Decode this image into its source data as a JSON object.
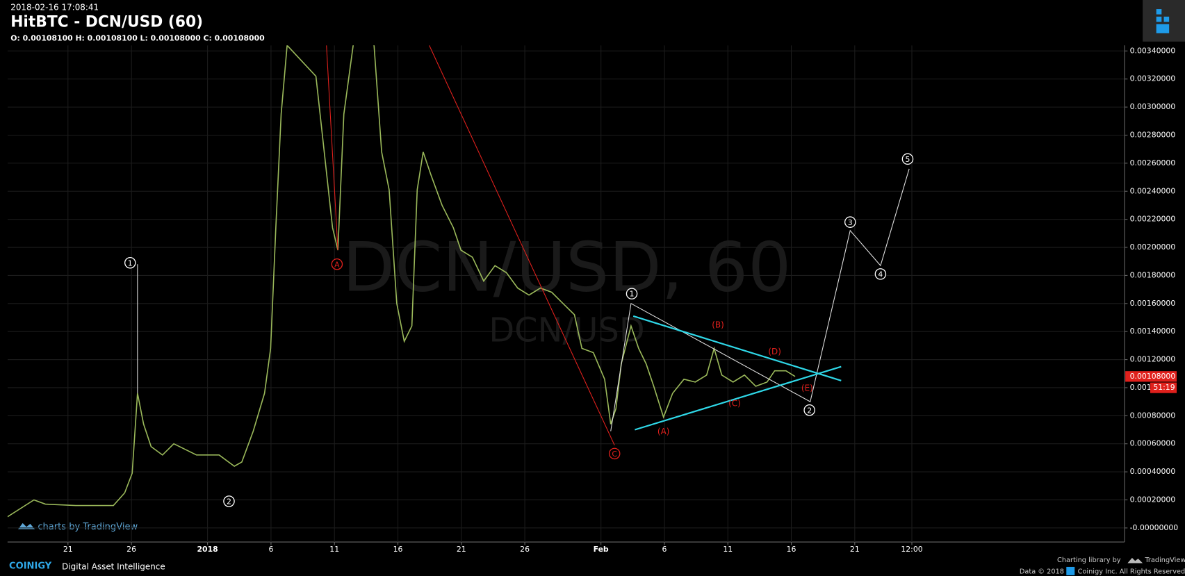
{
  "chart_data": {
    "type": "line",
    "timestamp": "2018-02-16 17:08:41",
    "title": "HitBTC - DCN/USD (60)",
    "ohlc": "O: 0.00108100 H: 0.00108100 L: 0.00108000 C: 0.00108000",
    "watermark": "DCN/USD, 60",
    "watermark_small": "DCN/USD",
    "series": [
      {
        "name": "DCN/USD",
        "color": "#9ab85a",
        "x": [
          -0.76,
          1.32,
          2.22,
          4.6,
          7.58,
          8.47,
          9.06,
          9.48,
          9.96,
          10.55,
          11.45,
          12.34,
          14.13,
          15.91,
          17.11,
          17.7,
          18.6,
          19.49,
          19.97,
          20.38,
          20.8,
          21.27,
          23.54,
          24.85,
          25.27,
          25.74,
          26.64,
          28.12,
          28.72,
          29.31,
          29.91,
          30.5,
          31.1,
          31.52,
          31.99,
          32.59,
          33.48,
          34.37,
          34.97,
          35.87,
          36.76,
          37.65,
          38.55,
          39.44,
          40.33,
          41.23,
          42.12,
          43.01,
          43.91,
          44.5,
          45.4,
          46.29,
          46.77,
          47.18,
          47.6,
          48.37,
          48.97,
          49.56,
          50.16,
          50.93,
          51.65,
          52.54,
          53.43,
          54.33,
          54.92,
          55.52,
          56.41,
          57.31,
          58.2,
          59.09,
          59.69,
          60.58,
          61.3
        ],
        "values": [
          8e-05,
          0.0002,
          0.00017,
          0.00016,
          0.00016,
          0.00025,
          0.00039,
          0.00096,
          0.00074,
          0.00058,
          0.00052,
          0.0006,
          0.00052,
          0.00052,
          0.00044,
          0.00047,
          0.00069,
          0.00096,
          0.00128,
          0.00214,
          0.00295,
          0.00344,
          0.00322,
          0.00214,
          0.00198,
          0.00295,
          0.00355,
          0.00344,
          0.00268,
          0.00241,
          0.0016,
          0.00133,
          0.00144,
          0.00241,
          0.00268,
          0.00252,
          0.0023,
          0.00214,
          0.00198,
          0.00193,
          0.00176,
          0.00187,
          0.00182,
          0.00171,
          0.00166,
          0.00171,
          0.00168,
          0.0016,
          0.00152,
          0.00128,
          0.00125,
          0.00106,
          0.00074,
          0.00085,
          0.00117,
          0.00144,
          0.00128,
          0.00117,
          0.00101,
          0.00079,
          0.00096,
          0.00106,
          0.00104,
          0.00109,
          0.00128,
          0.00109,
          0.00104,
          0.00109,
          0.00101,
          0.00104,
          0.00112,
          0.00112,
          0.00108
        ]
      }
    ],
    "xlim": [
      -0.76,
      87.2
    ],
    "xticks": [
      {
        "value": 4,
        "label": "21"
      },
      {
        "value": 9,
        "label": "26"
      },
      {
        "value": 15,
        "label": "2018"
      },
      {
        "value": 20,
        "label": "6"
      },
      {
        "value": 25,
        "label": "11"
      },
      {
        "value": 30,
        "label": "16"
      },
      {
        "value": 35,
        "label": "21"
      },
      {
        "value": 40,
        "label": "26"
      },
      {
        "value": 46,
        "label": "Feb"
      },
      {
        "value": 51,
        "label": "6"
      },
      {
        "value": 56,
        "label": "11"
      },
      {
        "value": 61,
        "label": "16"
      },
      {
        "value": 66,
        "label": "21"
      },
      {
        "value": 70.5,
        "label": "12:00"
      }
    ],
    "ylim": [
      -0.0001,
      0.00344
    ],
    "yticks": [
      {
        "value": 0,
        "label": "-0.00000000"
      },
      {
        "value": 0.0002,
        "label": "0.00020000"
      },
      {
        "value": 0.0004,
        "label": "0.00040000"
      },
      {
        "value": 0.0006,
        "label": "0.00060000"
      },
      {
        "value": 0.0008,
        "label": "0.00080000"
      },
      {
        "value": 0.001,
        "label": "0.001"
      },
      {
        "value": 0.0012,
        "label": "0.00120000"
      },
      {
        "value": 0.0014,
        "label": "0.00140000"
      },
      {
        "value": 0.0016,
        "label": "0.00160000"
      },
      {
        "value": 0.0018,
        "label": "0.00180000"
      },
      {
        "value": 0.002,
        "label": "0.00200000"
      },
      {
        "value": 0.0022,
        "label": "0.00220000"
      },
      {
        "value": 0.0024,
        "label": "0.00240000"
      },
      {
        "value": 0.0026,
        "label": "0.00260000"
      },
      {
        "value": 0.0028,
        "label": "0.00280000"
      },
      {
        "value": 0.003,
        "label": "0.00300000"
      },
      {
        "value": 0.0032,
        "label": "0.00320000"
      },
      {
        "value": 0.0034,
        "label": "0.00340000"
      }
    ],
    "grid": true,
    "last_price": {
      "value": 0.00108,
      "label": "0.00108000",
      "countdown": "51:19"
    },
    "drawings": [
      {
        "color": "#e0201c",
        "x": [
          24.37,
          25.27
        ],
        "y": [
          0.00344,
          0.00198
        ]
      },
      {
        "color": "#e0201c",
        "x": [
          32.47,
          47.07
        ],
        "y": [
          0.00344,
          0.00059
        ]
      },
      {
        "color": "#dddddd",
        "x": [
          9.48,
          9.48
        ],
        "y": [
          0.00188,
          0.00096
        ]
      },
      {
        "color": "#dddddd",
        "x": [
          46.77,
          48.37,
          62.49,
          65.64,
          68.03,
          70.29
        ],
        "y": [
          0.00069,
          0.0016,
          0.0009,
          0.00212,
          0.00187,
          0.00256
        ]
      },
      {
        "color": "#2fd8e8",
        "x": [
          48.55,
          64.93
        ],
        "y": [
          0.00151,
          0.00105
        ]
      },
      {
        "color": "#2fd8e8",
        "x": [
          48.67,
          64.93
        ],
        "y": [
          0.0007,
          0.00115
        ]
      }
    ],
    "annotations": [
      {
        "text": "1",
        "x": 8.9,
        "y": 0.00189,
        "color": "#ffffff",
        "circle": true
      },
      {
        "text": "2",
        "x": 16.69,
        "y": 0.00019,
        "color": "#ffffff",
        "circle": true
      },
      {
        "text": "A",
        "x": 25.2,
        "y": 0.00188,
        "color": "#e0201c",
        "circle": true
      },
      {
        "text": "C",
        "x": 47.07,
        "y": 0.00053,
        "color": "#e0201c",
        "circle": true
      },
      {
        "text": "1",
        "x": 48.43,
        "y": 0.00167,
        "color": "#ffffff",
        "circle": true
      },
      {
        "text": "2",
        "x": 62.43,
        "y": 0.00084,
        "color": "#ffffff",
        "circle": true
      },
      {
        "text": "3",
        "x": 65.64,
        "y": 0.00218,
        "color": "#ffffff",
        "circle": true
      },
      {
        "text": "4",
        "x": 68.03,
        "y": 0.00181,
        "color": "#ffffff",
        "circle": true
      },
      {
        "text": "5",
        "x": 70.17,
        "y": 0.00263,
        "color": "#ffffff",
        "circle": true
      },
      {
        "text": "(A)",
        "x": 50.93,
        "y": 0.00069,
        "color": "#e0201c",
        "circle": false
      },
      {
        "text": "(B)",
        "x": 55.22,
        "y": 0.00145,
        "color": "#e0201c",
        "circle": false
      },
      {
        "text": "(C)",
        "x": 56.53,
        "y": 0.00089,
        "color": "#e0201c",
        "circle": false
      },
      {
        "text": "(D)",
        "x": 59.69,
        "y": 0.00126,
        "color": "#e0201c",
        "circle": false
      },
      {
        "text": "(E)",
        "x": 62.25,
        "y": 0.001,
        "color": "#e0201c",
        "circle": false
      }
    ],
    "branding": "charts by TradingView"
  },
  "footer": {
    "brand": "COINIGY",
    "tagline": "Digital Asset Intelligence",
    "library": "Charting library by",
    "library_brand": "TradingView",
    "data_note": "Data © 2018",
    "rights": "Coinigy Inc. All Rights Reserved."
  }
}
